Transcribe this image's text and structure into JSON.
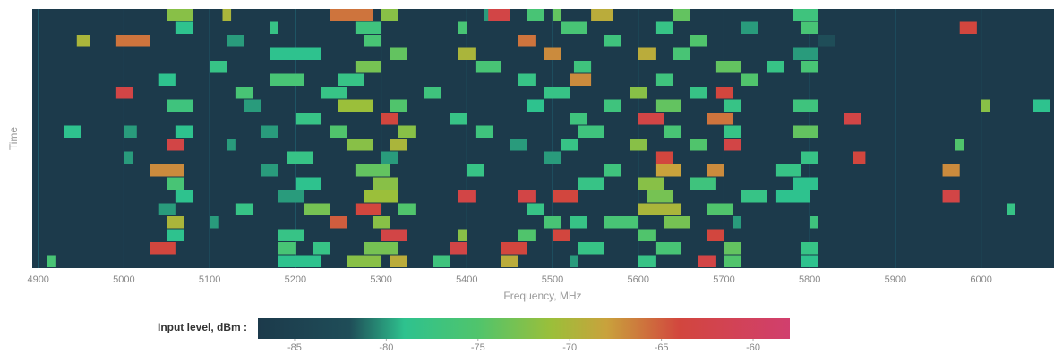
{
  "chart_data": {
    "type": "waterfall",
    "x_label": "Frequency, MHz",
    "y_label": "Time",
    "xlim": [
      4893,
      6085
    ],
    "xticks": [
      4900,
      5000,
      5100,
      5200,
      5300,
      5400,
      5500,
      5600,
      5700,
      5800,
      5900,
      6000
    ],
    "grid": true,
    "background": "#1c3a4b",
    "grid_color": "#1f6373",
    "rows": 20,
    "colorbar": {
      "label": "Input level, dBm :",
      "lim": [
        -87,
        -58
      ],
      "ticks": [
        -85,
        -80,
        -75,
        -70,
        -65,
        -60
      ]
    },
    "colorscale": [
      [
        -87,
        "#1c3a4b"
      ],
      [
        -82,
        "#1f4d58"
      ],
      [
        -79,
        "#2ec28e"
      ],
      [
        -75,
        "#50c46c"
      ],
      [
        -71,
        "#9bbf3a"
      ],
      [
        -68,
        "#c9a23c"
      ],
      [
        -64,
        "#d2463e"
      ],
      [
        -58,
        "#d13f6e"
      ]
    ],
    "blocks": [
      [
        5050,
        5080,
        0,
        -72
      ],
      [
        5115,
        5125,
        0,
        -70
      ],
      [
        5240,
        5290,
        0,
        -66
      ],
      [
        5300,
        5320,
        0,
        -72
      ],
      [
        5420,
        5440,
        0,
        -80
      ],
      [
        5425,
        5450,
        0,
        -63
      ],
      [
        5470,
        5490,
        0,
        -76
      ],
      [
        5500,
        5510,
        0,
        -74
      ],
      [
        5545,
        5570,
        0,
        -69
      ],
      [
        5640,
        5660,
        0,
        -74
      ],
      [
        5780,
        5810,
        0,
        -77
      ],
      [
        5060,
        5080,
        1,
        -79
      ],
      [
        5170,
        5180,
        1,
        -78
      ],
      [
        5270,
        5300,
        1,
        -77
      ],
      [
        5390,
        5400,
        1,
        -76
      ],
      [
        5510,
        5540,
        1,
        -76
      ],
      [
        5620,
        5640,
        1,
        -78
      ],
      [
        5720,
        5740,
        1,
        -80
      ],
      [
        5790,
        5810,
        1,
        -76
      ],
      [
        5975,
        5995,
        1,
        -64
      ],
      [
        4945,
        4960,
        2,
        -70
      ],
      [
        4990,
        5030,
        2,
        -66
      ],
      [
        5120,
        5140,
        2,
        -80
      ],
      [
        5280,
        5300,
        2,
        -76
      ],
      [
        5460,
        5480,
        2,
        -66
      ],
      [
        5560,
        5580,
        2,
        -77
      ],
      [
        5660,
        5680,
        2,
        -75
      ],
      [
        5810,
        5830,
        2,
        -82
      ],
      [
        5170,
        5230,
        3,
        -79
      ],
      [
        5310,
        5330,
        3,
        -74
      ],
      [
        5390,
        5410,
        3,
        -70
      ],
      [
        5490,
        5510,
        3,
        -67
      ],
      [
        5600,
        5620,
        3,
        -69
      ],
      [
        5640,
        5660,
        3,
        -76
      ],
      [
        5780,
        5810,
        3,
        -80
      ],
      [
        5100,
        5120,
        4,
        -78
      ],
      [
        5270,
        5300,
        4,
        -73
      ],
      [
        5410,
        5440,
        4,
        -76
      ],
      [
        5525,
        5545,
        4,
        -77
      ],
      [
        5690,
        5720,
        4,
        -74
      ],
      [
        5750,
        5770,
        4,
        -78
      ],
      [
        5790,
        5810,
        4,
        -76
      ],
      [
        5040,
        5060,
        5,
        -79
      ],
      [
        5170,
        5210,
        5,
        -76
      ],
      [
        5250,
        5280,
        5,
        -78
      ],
      [
        5460,
        5480,
        5,
        -78
      ],
      [
        5520,
        5545,
        5,
        -67
      ],
      [
        5620,
        5640,
        5,
        -77
      ],
      [
        5720,
        5740,
        5,
        -75
      ],
      [
        4990,
        5010,
        6,
        -63
      ],
      [
        5130,
        5150,
        6,
        -76
      ],
      [
        5230,
        5260,
        6,
        -78
      ],
      [
        5350,
        5370,
        6,
        -77
      ],
      [
        5490,
        5520,
        6,
        -78
      ],
      [
        5590,
        5610,
        6,
        -72
      ],
      [
        5660,
        5680,
        6,
        -78
      ],
      [
        5690,
        5710,
        6,
        -64
      ],
      [
        5050,
        5080,
        7,
        -77
      ],
      [
        5140,
        5160,
        7,
        -80
      ],
      [
        5250,
        5290,
        7,
        -71
      ],
      [
        5310,
        5330,
        7,
        -75
      ],
      [
        5470,
        5490,
        7,
        -79
      ],
      [
        5560,
        5580,
        7,
        -77
      ],
      [
        5620,
        5650,
        7,
        -74
      ],
      [
        5700,
        5720,
        7,
        -78
      ],
      [
        5780,
        5810,
        7,
        -77
      ],
      [
        6000,
        6010,
        7,
        -72
      ],
      [
        6060,
        6080,
        7,
        -79
      ],
      [
        5200,
        5230,
        8,
        -78
      ],
      [
        5300,
        5320,
        8,
        -64
      ],
      [
        5380,
        5400,
        8,
        -78
      ],
      [
        5520,
        5540,
        8,
        -77
      ],
      [
        5600,
        5630,
        8,
        -63
      ],
      [
        5680,
        5710,
        8,
        -66
      ],
      [
        5840,
        5860,
        8,
        -63
      ],
      [
        4930,
        4950,
        9,
        -79
      ],
      [
        5000,
        5015,
        9,
        -80
      ],
      [
        5060,
        5080,
        9,
        -79
      ],
      [
        5160,
        5180,
        9,
        -80
      ],
      [
        5240,
        5260,
        9,
        -75
      ],
      [
        5320,
        5340,
        9,
        -72
      ],
      [
        5410,
        5430,
        9,
        -77
      ],
      [
        5530,
        5560,
        9,
        -77
      ],
      [
        5630,
        5650,
        9,
        -76
      ],
      [
        5700,
        5720,
        9,
        -78
      ],
      [
        5780,
        5810,
        9,
        -74
      ],
      [
        5050,
        5070,
        10,
        -63
      ],
      [
        5120,
        5130,
        10,
        -80
      ],
      [
        5260,
        5290,
        10,
        -72
      ],
      [
        5310,
        5330,
        10,
        -70
      ],
      [
        5450,
        5470,
        10,
        -80
      ],
      [
        5510,
        5530,
        10,
        -78
      ],
      [
        5590,
        5610,
        10,
        -72
      ],
      [
        5660,
        5680,
        10,
        -75
      ],
      [
        5700,
        5720,
        10,
        -63
      ],
      [
        5970,
        5980,
        10,
        -75
      ],
      [
        5000,
        5010,
        11,
        -80
      ],
      [
        5190,
        5220,
        11,
        -78
      ],
      [
        5300,
        5320,
        11,
        -80
      ],
      [
        5490,
        5510,
        11,
        -80
      ],
      [
        5620,
        5640,
        11,
        -64
      ],
      [
        5790,
        5810,
        11,
        -78
      ],
      [
        5850,
        5865,
        11,
        -64
      ],
      [
        5030,
        5070,
        12,
        -67
      ],
      [
        5160,
        5180,
        12,
        -80
      ],
      [
        5270,
        5310,
        12,
        -74
      ],
      [
        5400,
        5420,
        12,
        -78
      ],
      [
        5560,
        5580,
        12,
        -77
      ],
      [
        5620,
        5650,
        12,
        -68
      ],
      [
        5680,
        5700,
        12,
        -67
      ],
      [
        5760,
        5790,
        12,
        -78
      ],
      [
        5955,
        5975,
        12,
        -67
      ],
      [
        5050,
        5070,
        13,
        -76
      ],
      [
        5200,
        5230,
        13,
        -79
      ],
      [
        5290,
        5320,
        13,
        -72
      ],
      [
        5530,
        5560,
        13,
        -78
      ],
      [
        5600,
        5630,
        13,
        -72
      ],
      [
        5660,
        5690,
        13,
        -77
      ],
      [
        5780,
        5810,
        13,
        -79
      ],
      [
        5060,
        5080,
        14,
        -79
      ],
      [
        5180,
        5210,
        14,
        -80
      ],
      [
        5280,
        5320,
        14,
        -71
      ],
      [
        5390,
        5410,
        14,
        -63
      ],
      [
        5460,
        5480,
        14,
        -63
      ],
      [
        5500,
        5530,
        14,
        -64
      ],
      [
        5610,
        5640,
        14,
        -73
      ],
      [
        5720,
        5750,
        14,
        -78
      ],
      [
        5760,
        5800,
        14,
        -79
      ],
      [
        5955,
        5975,
        14,
        -63
      ],
      [
        5040,
        5060,
        15,
        -80
      ],
      [
        5130,
        5150,
        15,
        -78
      ],
      [
        5210,
        5240,
        15,
        -73
      ],
      [
        5270,
        5300,
        15,
        -64
      ],
      [
        5320,
        5340,
        15,
        -75
      ],
      [
        5470,
        5490,
        15,
        -78
      ],
      [
        5600,
        5650,
        15,
        -70
      ],
      [
        5680,
        5710,
        15,
        -75
      ],
      [
        6030,
        6040,
        15,
        -78
      ],
      [
        5050,
        5070,
        16,
        -70
      ],
      [
        5100,
        5110,
        16,
        -80
      ],
      [
        5240,
        5260,
        16,
        -65
      ],
      [
        5290,
        5310,
        16,
        -72
      ],
      [
        5490,
        5510,
        16,
        -76
      ],
      [
        5520,
        5540,
        16,
        -78
      ],
      [
        5560,
        5600,
        16,
        -76
      ],
      [
        5630,
        5660,
        16,
        -73
      ],
      [
        5710,
        5720,
        16,
        -80
      ],
      [
        5800,
        5810,
        16,
        -77
      ],
      [
        5050,
        5070,
        17,
        -79
      ],
      [
        5180,
        5210,
        17,
        -78
      ],
      [
        5300,
        5330,
        17,
        -63
      ],
      [
        5390,
        5400,
        17,
        -72
      ],
      [
        5460,
        5480,
        17,
        -75
      ],
      [
        5500,
        5520,
        17,
        -64
      ],
      [
        5600,
        5620,
        17,
        -75
      ],
      [
        5680,
        5700,
        17,
        -64
      ],
      [
        5030,
        5060,
        18,
        -64
      ],
      [
        5180,
        5200,
        18,
        -76
      ],
      [
        5220,
        5240,
        18,
        -78
      ],
      [
        5280,
        5320,
        18,
        -73
      ],
      [
        5380,
        5400,
        18,
        -63
      ],
      [
        5440,
        5470,
        18,
        -64
      ],
      [
        5530,
        5560,
        18,
        -78
      ],
      [
        5620,
        5650,
        18,
        -76
      ],
      [
        5700,
        5720,
        18,
        -74
      ],
      [
        5790,
        5810,
        18,
        -78
      ],
      [
        4910,
        4920,
        19,
        -76
      ],
      [
        5180,
        5230,
        19,
        -79
      ],
      [
        5260,
        5300,
        19,
        -72
      ],
      [
        5310,
        5330,
        19,
        -69
      ],
      [
        5360,
        5380,
        19,
        -77
      ],
      [
        5440,
        5460,
        19,
        -69
      ],
      [
        5520,
        5530,
        19,
        -80
      ],
      [
        5600,
        5620,
        19,
        -78
      ],
      [
        5670,
        5690,
        19,
        -63
      ],
      [
        5700,
        5720,
        19,
        -75
      ],
      [
        5790,
        5810,
        19,
        -79
      ]
    ]
  }
}
